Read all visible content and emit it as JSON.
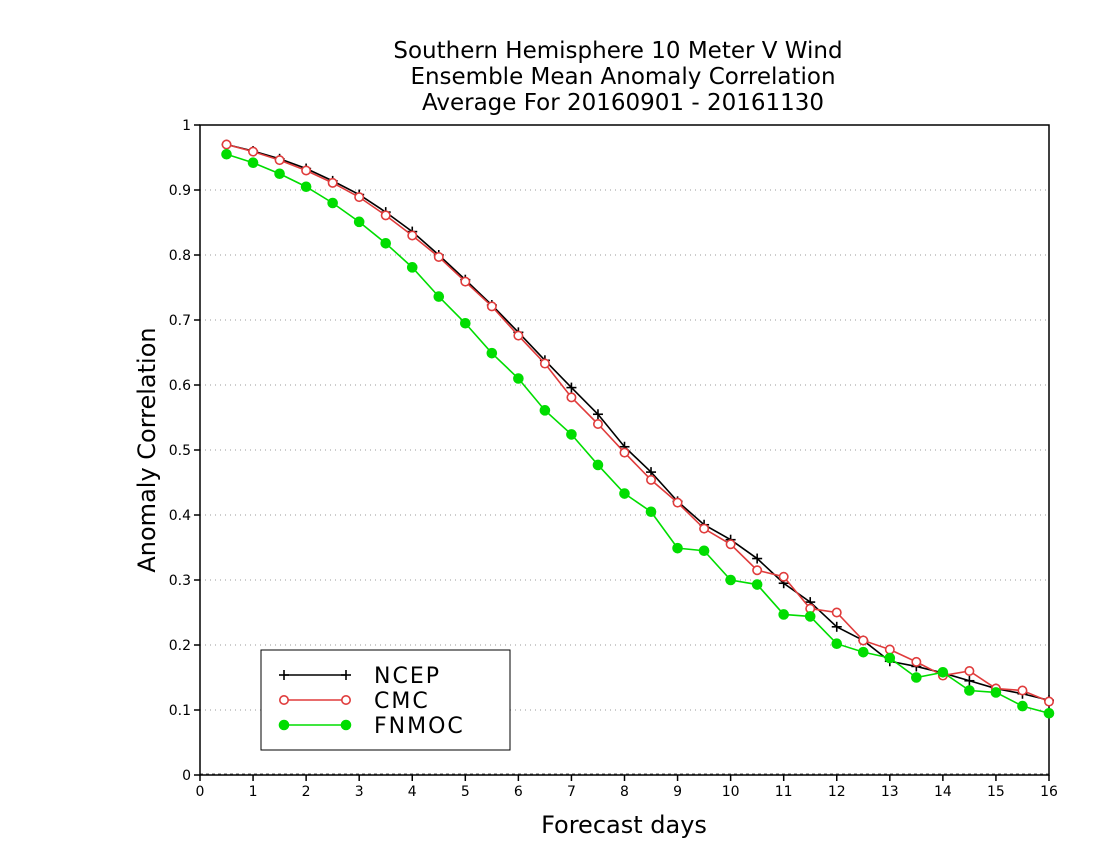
{
  "chart_data": {
    "type": "line",
    "title": [
      "Southern Hemisphere 10 Meter V Wind",
      "Ensemble Mean Anomaly Correlation",
      "Average For 20160901 - 20161130"
    ],
    "xlabel": "Forecast days",
    "ylabel": "Anomaly Correlation",
    "xlim": [
      0,
      16
    ],
    "ylim": [
      0,
      1
    ],
    "x_ticks": [
      "0",
      "1",
      "2",
      "3",
      "4",
      "5",
      "6",
      "7",
      "8",
      "9",
      "10",
      "11",
      "12",
      "13",
      "14",
      "15",
      "16"
    ],
    "y_ticks": [
      "0",
      "0.1",
      "0.2",
      "0.3",
      "0.4",
      "0.5",
      "0.6",
      "0.7",
      "0.8",
      "0.9",
      "1"
    ],
    "grid": "horizontal dotted",
    "legend_position": "bottom-left",
    "x": [
      0.5,
      1,
      1.5,
      2,
      2.5,
      3,
      3.5,
      4,
      4.5,
      5,
      5.5,
      6,
      6.5,
      7,
      7.5,
      8,
      8.5,
      9,
      9.5,
      10,
      10.5,
      11,
      11.5,
      12,
      12.5,
      13,
      13.5,
      14,
      14.5,
      15,
      15.5,
      16
    ],
    "series": [
      {
        "name": "NCEP",
        "color": "#000000",
        "marker": "plus",
        "values": [
          0.97,
          0.96,
          0.948,
          0.933,
          0.914,
          0.893,
          0.866,
          0.836,
          0.8,
          0.762,
          0.723,
          0.681,
          0.638,
          0.596,
          0.555,
          0.505,
          0.466,
          0.421,
          0.385,
          0.362,
          0.333,
          0.295,
          0.266,
          0.228,
          0.207,
          0.175,
          0.167,
          0.157,
          0.145,
          0.133,
          0.125,
          0.115
        ]
      },
      {
        "name": "CMC",
        "color": "#e03c3c",
        "marker": "open-circle",
        "values": [
          0.97,
          0.959,
          0.946,
          0.93,
          0.911,
          0.889,
          0.861,
          0.83,
          0.797,
          0.759,
          0.721,
          0.676,
          0.633,
          0.581,
          0.54,
          0.496,
          0.454,
          0.419,
          0.379,
          0.355,
          0.315,
          0.305,
          0.256,
          0.25,
          0.207,
          0.193,
          0.174,
          0.153,
          0.16,
          0.133,
          0.13,
          0.113
        ]
      },
      {
        "name": "FNMOC",
        "color": "#00dd00",
        "marker": "filled-circle",
        "values": [
          0.955,
          0.942,
          0.925,
          0.905,
          0.88,
          0.851,
          0.818,
          0.781,
          0.736,
          0.695,
          0.649,
          0.61,
          0.561,
          0.524,
          0.477,
          0.433,
          0.405,
          0.349,
          0.345,
          0.3,
          0.293,
          0.247,
          0.244,
          0.202,
          0.189,
          0.18,
          0.15,
          0.158,
          0.13,
          0.127,
          0.106,
          0.095
        ]
      }
    ]
  }
}
